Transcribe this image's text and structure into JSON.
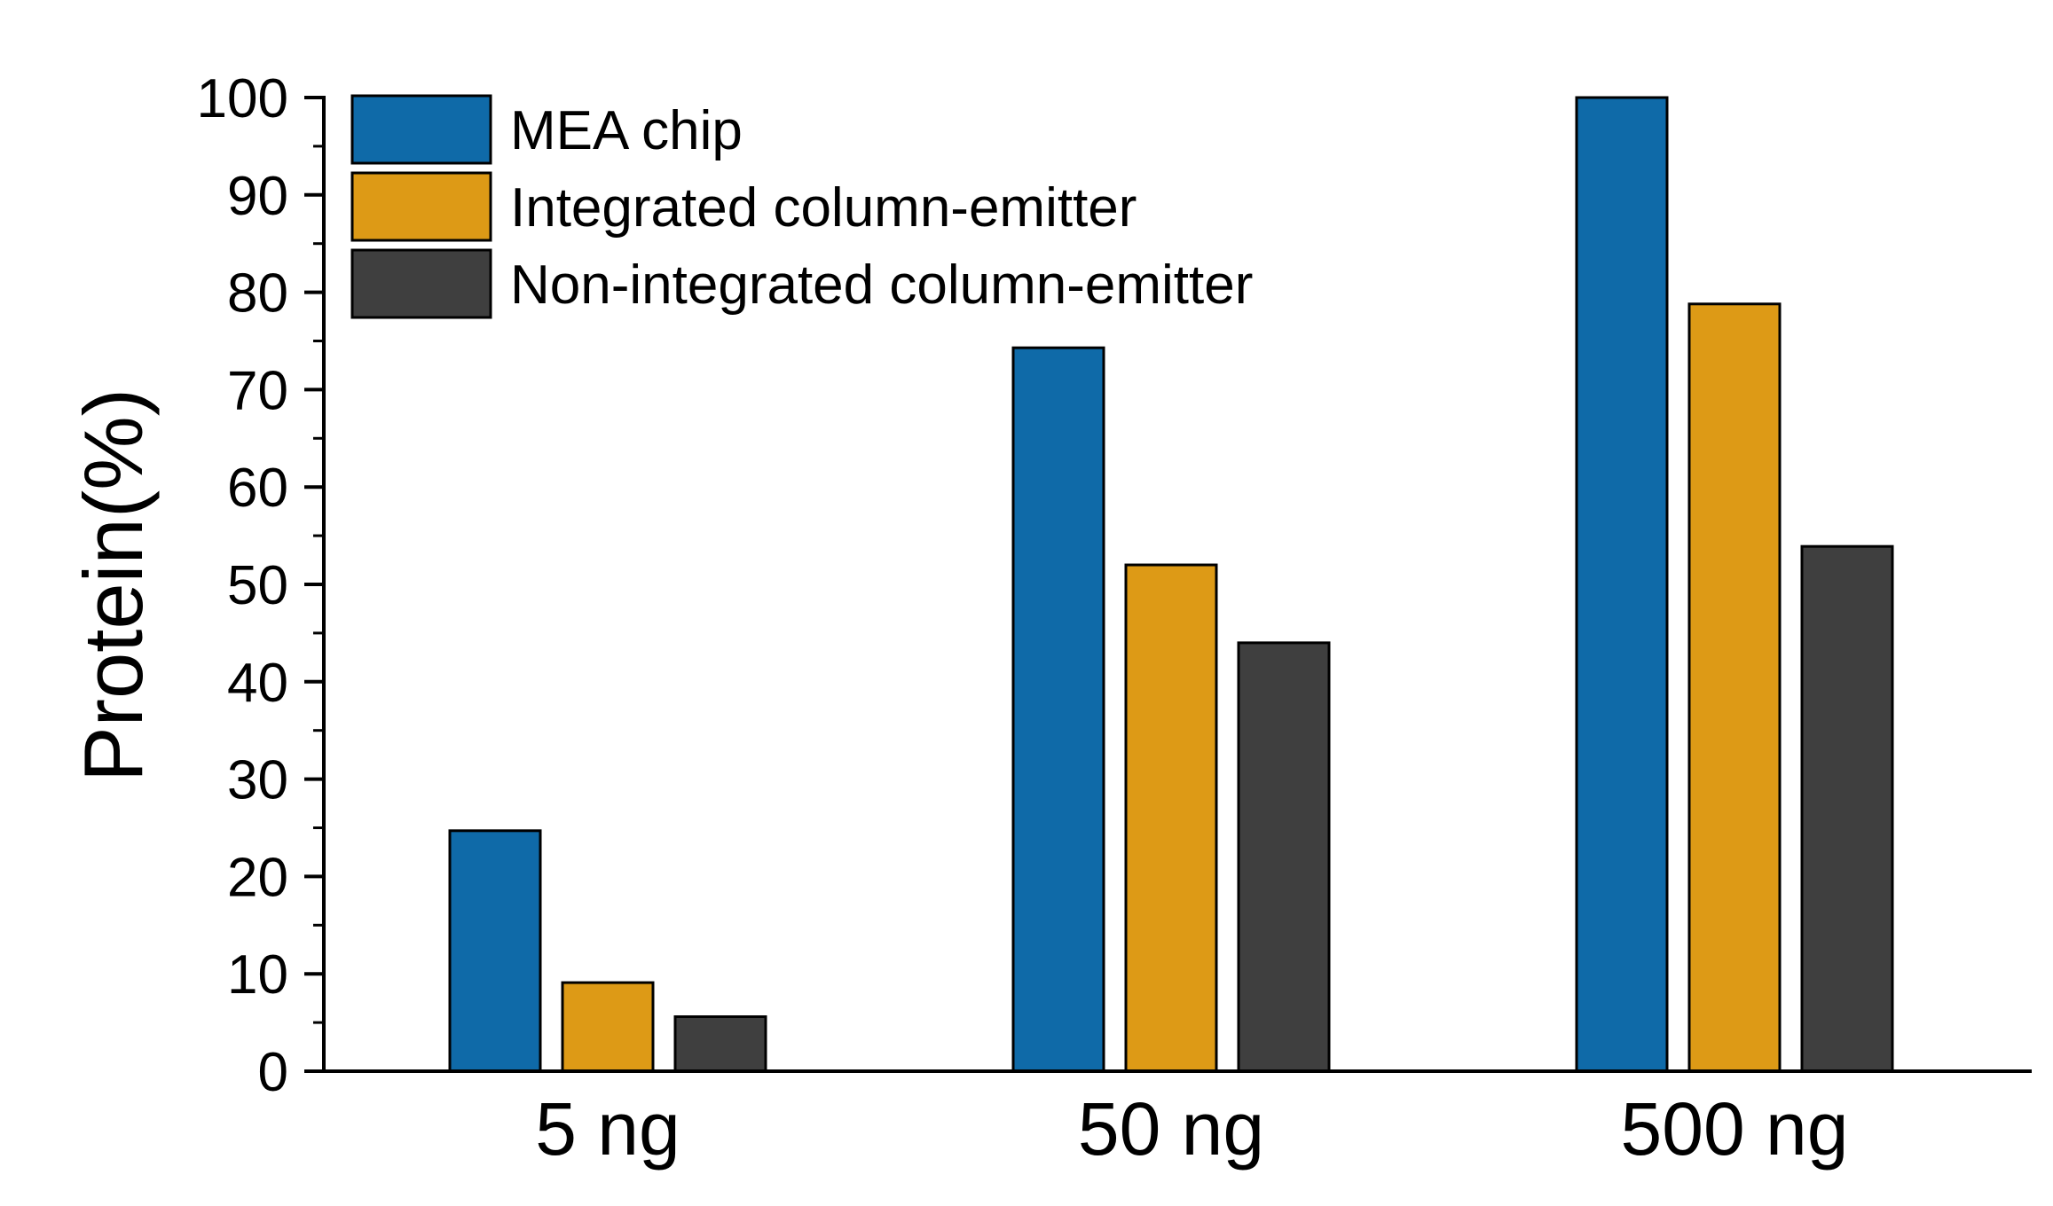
{
  "chart_data": {
    "type": "bar",
    "title": "",
    "xlabel": "",
    "ylabel": "Protein(%)",
    "ylim": [
      0,
      100
    ],
    "yticks": [
      "0",
      "10",
      "20",
      "30",
      "40",
      "50",
      "60",
      "70",
      "80",
      "90",
      "100"
    ],
    "categories": [
      "5 ng",
      "50 ng",
      "500 ng"
    ],
    "series": [
      {
        "name": "MEA chip",
        "color": "#0f6aa8",
        "values": [
          24.7,
          74.3,
          100
        ]
      },
      {
        "name": "Integrated column-emitter",
        "color": "#dd9a16",
        "values": [
          9.1,
          52.0,
          78.8
        ]
      },
      {
        "name": "Non-integrated column-emitter",
        "color": "#3f3f3f",
        "values": [
          5.6,
          44.0,
          53.9
        ]
      }
    ],
    "legend_position": "top-left",
    "grid": false
  }
}
